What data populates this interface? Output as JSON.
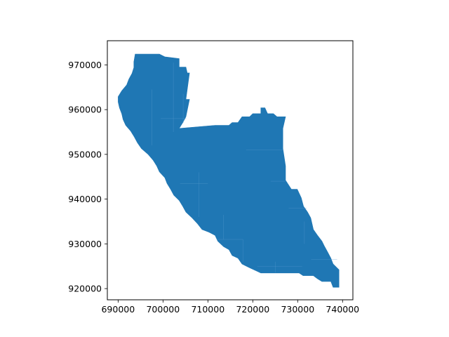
{
  "chart_data": {
    "type": "area",
    "title": "",
    "xlabel": "",
    "ylabel": "",
    "xlim": [
      687600,
      742300
    ],
    "ylim": [
      917500,
      975400
    ],
    "grid": false,
    "x_ticks": [
      {
        "value": 690000,
        "label": "690000"
      },
      {
        "value": 700000,
        "label": "700000"
      },
      {
        "value": 710000,
        "label": "710000"
      },
      {
        "value": 720000,
        "label": "720000"
      },
      {
        "value": 730000,
        "label": "730000"
      },
      {
        "value": 740000,
        "label": "740000"
      }
    ],
    "y_ticks": [
      {
        "value": 920000,
        "label": "920000"
      },
      {
        "value": 930000,
        "label": "930000"
      },
      {
        "value": 940000,
        "label": "940000"
      },
      {
        "value": 950000,
        "label": "950000"
      },
      {
        "value": 960000,
        "label": "960000"
      },
      {
        "value": 970000,
        "label": "970000"
      }
    ],
    "fill_color": "#1f77b4",
    "edge_color": "#5a9bd0",
    "region": {
      "boundary": [
        [
          693800,
          972400
        ],
        [
          699200,
          972400
        ],
        [
          700400,
          971800
        ],
        [
          703600,
          971400
        ],
        [
          703600,
          969500
        ],
        [
          705100,
          969500
        ],
        [
          705400,
          968200
        ],
        [
          705900,
          968200
        ],
        [
          705100,
          962300
        ],
        [
          705900,
          962300
        ],
        [
          705100,
          958400
        ],
        [
          704400,
          957100
        ],
        [
          703600,
          955800
        ],
        [
          711600,
          956500
        ],
        [
          714700,
          956500
        ],
        [
          715400,
          957100
        ],
        [
          716700,
          957100
        ],
        [
          717600,
          958400
        ],
        [
          719300,
          958400
        ],
        [
          720000,
          959100
        ],
        [
          721800,
          959100
        ],
        [
          721800,
          960400
        ],
        [
          722700,
          960400
        ],
        [
          723300,
          959100
        ],
        [
          724600,
          959100
        ],
        [
          725400,
          958400
        ],
        [
          727300,
          958400
        ],
        [
          726700,
          955800
        ],
        [
          726700,
          951300
        ],
        [
          727300,
          947400
        ],
        [
          727300,
          944200
        ],
        [
          728600,
          942200
        ],
        [
          729900,
          942200
        ],
        [
          730800,
          940300
        ],
        [
          731300,
          938400
        ],
        [
          732200,
          937100
        ],
        [
          732900,
          935800
        ],
        [
          733500,
          933200
        ],
        [
          734400,
          931900
        ],
        [
          735400,
          930600
        ],
        [
          736000,
          929400
        ],
        [
          736700,
          928100
        ],
        [
          737400,
          926800
        ],
        [
          737900,
          925500
        ],
        [
          739200,
          924200
        ],
        [
          739200,
          920300
        ],
        [
          737900,
          920300
        ],
        [
          737400,
          921600
        ],
        [
          735400,
          921600
        ],
        [
          734400,
          922200
        ],
        [
          733500,
          922900
        ],
        [
          731200,
          922900
        ],
        [
          730300,
          923500
        ],
        [
          721800,
          923500
        ],
        [
          720300,
          924200
        ],
        [
          719000,
          924800
        ],
        [
          717600,
          925500
        ],
        [
          716700,
          926800
        ],
        [
          715400,
          927400
        ],
        [
          714700,
          928700
        ],
        [
          713500,
          929400
        ],
        [
          712200,
          930600
        ],
        [
          711600,
          931900
        ],
        [
          710300,
          932600
        ],
        [
          708700,
          933200
        ],
        [
          707700,
          934500
        ],
        [
          706500,
          935800
        ],
        [
          705100,
          937100
        ],
        [
          704400,
          938400
        ],
        [
          703600,
          939700
        ],
        [
          702400,
          940900
        ],
        [
          701700,
          942200
        ],
        [
          700900,
          943500
        ],
        [
          700400,
          944800
        ],
        [
          699200,
          946100
        ],
        [
          698600,
          947400
        ],
        [
          697800,
          948700
        ],
        [
          696700,
          950000
        ],
        [
          695200,
          951300
        ],
        [
          694300,
          952600
        ],
        [
          693600,
          953900
        ],
        [
          692800,
          955200
        ],
        [
          691700,
          956500
        ],
        [
          691100,
          957800
        ],
        [
          690800,
          959100
        ],
        [
          690300,
          960400
        ],
        [
          690000,
          961700
        ],
        [
          690000,
          962900
        ],
        [
          690800,
          964200
        ],
        [
          691900,
          965500
        ],
        [
          692400,
          966800
        ],
        [
          693100,
          968100
        ],
        [
          693500,
          969400
        ],
        [
          693500,
          970700
        ],
        [
          693800,
          972400
        ]
      ]
    }
  }
}
